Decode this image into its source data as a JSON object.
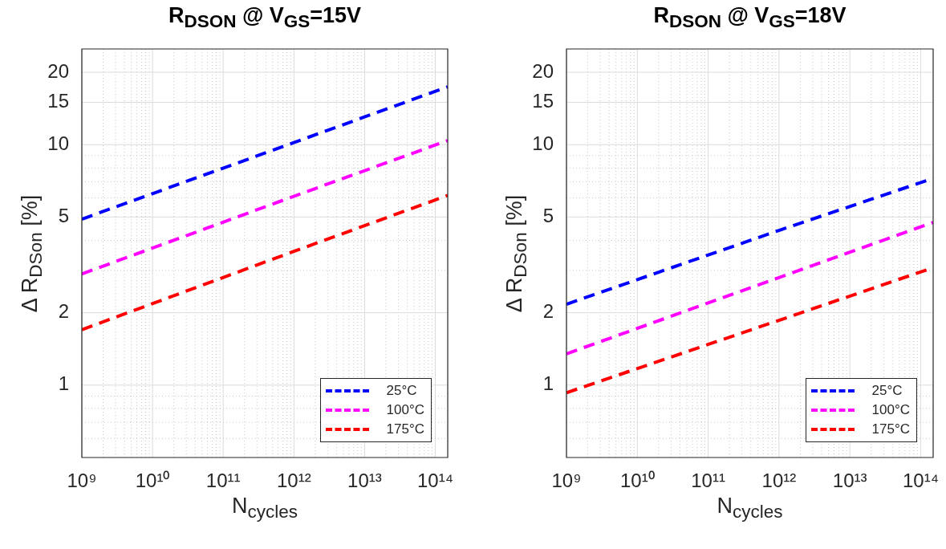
{
  "chart_data": [
    {
      "type": "line",
      "title": "R$_{DSON}$ @ V$_{GS}$=15V",
      "xlabel": "N$_{cycles}$",
      "ylabel": "Δ R$_{DSon}$ [%]",
      "x": [
        1000000000.0,
        1000000000000.0,
        150000000000000.0
      ],
      "series": [
        {
          "name": "25°C",
          "color": "#0000ff",
          "values": [
            4.9,
            10.2,
            17.4
          ]
        },
        {
          "name": "100°C",
          "color": "#ff00ff",
          "values": [
            2.9,
            6.1,
            10.4
          ]
        },
        {
          "name": "175°C",
          "color": "#ff0000",
          "values": [
            1.7,
            3.6,
            6.15
          ]
        }
      ],
      "log": "xy",
      "xlim": [
        1000000000.0,
        150000000000000.0
      ],
      "ylim": [
        0.5,
        25
      ],
      "xticks": [
        {
          "value": 1000000000.0,
          "label": "10⁹"
        },
        {
          "value": 2000000000.0,
          "label": null
        },
        {
          "value": 3000000000.0,
          "label": null
        },
        {
          "value": 4000000000.0,
          "label": null
        },
        {
          "value": 5000000000.0,
          "label": null
        },
        {
          "value": 6000000000.0,
          "label": null
        },
        {
          "value": 7000000000.0,
          "label": null
        },
        {
          "value": 8000000000.0,
          "label": null
        },
        {
          "value": 9000000000.0,
          "label": null
        },
        {
          "value": 10000000000.0,
          "label": "10¹⁰"
        },
        {
          "value": 20000000000.0,
          "label": null
        },
        {
          "value": 30000000000.0,
          "label": null
        },
        {
          "value": 40000000000.0,
          "label": null
        },
        {
          "value": 50000000000.0,
          "label": null
        },
        {
          "value": 60000000000.0,
          "label": null
        },
        {
          "value": 70000000000.0,
          "label": null
        },
        {
          "value": 80000000000.0,
          "label": null
        },
        {
          "value": 90000000000.0,
          "label": null
        },
        {
          "value": 100000000000.0,
          "label": "10¹¹"
        },
        {
          "value": 200000000000.0,
          "label": null
        },
        {
          "value": 300000000000.0,
          "label": null
        },
        {
          "value": 400000000000.0,
          "label": null
        },
        {
          "value": 500000000000.0,
          "label": null
        },
        {
          "value": 600000000000.0,
          "label": null
        },
        {
          "value": 700000000000.0,
          "label": null
        },
        {
          "value": 800000000000.0,
          "label": null
        },
        {
          "value": 900000000000.0,
          "label": null
        },
        {
          "value": 1000000000000.0,
          "label": "10¹²"
        },
        {
          "value": 2000000000000.0,
          "label": null
        },
        {
          "value": 3000000000000.0,
          "label": null
        },
        {
          "value": 4000000000000.0,
          "label": null
        },
        {
          "value": 5000000000000.0,
          "label": null
        },
        {
          "value": 6000000000000.0,
          "label": null
        },
        {
          "value": 7000000000000.0,
          "label": null
        },
        {
          "value": 8000000000000.0,
          "label": null
        },
        {
          "value": 9000000000000.0,
          "label": null
        },
        {
          "value": 10000000000000.0,
          "label": "10¹³"
        },
        {
          "value": 20000000000000.0,
          "label": null
        },
        {
          "value": 30000000000000.0,
          "label": null
        },
        {
          "value": 40000000000000.0,
          "label": null
        },
        {
          "value": 50000000000000.0,
          "label": null
        },
        {
          "value": 60000000000000.0,
          "label": null
        },
        {
          "value": 70000000000000.0,
          "label": null
        },
        {
          "value": 80000000000000.0,
          "label": null
        },
        {
          "value": 90000000000000.0,
          "label": null
        },
        {
          "value": 100000000000000.0,
          "label": "10¹⁴"
        }
      ],
      "yticks": [
        {
          "value": 0.6,
          "label": null
        },
        {
          "value": 0.7,
          "label": null
        },
        {
          "value": 0.8,
          "label": null
        },
        {
          "value": 0.9,
          "label": null
        },
        1,
        2,
        {
          "value": 3,
          "label": null
        },
        {
          "value": 4,
          "label": null
        },
        5,
        {
          "value": 6,
          "label": null
        },
        {
          "value": 7,
          "label": null
        },
        {
          "value": 8,
          "label": null
        },
        {
          "value": 9,
          "label": null
        },
        10,
        15,
        20
      ],
      "grid": true,
      "legend": "bottom right",
      "marker": "none",
      "line_style": "dashed"
    },
    {
      "type": "line",
      "title": "R$_{DSON}$ @ V$_{GS}$=18V",
      "xlabel": "N$_{cycles}$",
      "ylabel": "Δ R$_{DSon}$ [%]",
      "x": [
        1000000000.0,
        1000000000000.0,
        150000000000000.0
      ],
      "series": [
        {
          "name": "25°C",
          "color": "#0000ff",
          "values": [
            2.17,
            4.4,
            7.24
          ]
        },
        {
          "name": "100°C",
          "color": "#ff00ff",
          "values": [
            1.35,
            2.8,
            4.75
          ]
        },
        {
          "name": "175°C",
          "color": "#ff0000",
          "values": [
            0.93,
            1.86,
            3.08
          ]
        }
      ],
      "log": "xy",
      "xlim": [
        1000000000.0,
        150000000000000.0
      ],
      "ylim": [
        0.5,
        25
      ],
      "xticks": [
        {
          "value": 1000000000.0,
          "label": "10⁹"
        },
        {
          "value": 2000000000.0,
          "label": null
        },
        {
          "value": 3000000000.0,
          "label": null
        },
        {
          "value": 4000000000.0,
          "label": null
        },
        {
          "value": 5000000000.0,
          "label": null
        },
        {
          "value": 6000000000.0,
          "label": null
        },
        {
          "value": 7000000000.0,
          "label": null
        },
        {
          "value": 8000000000.0,
          "label": null
        },
        {
          "value": 9000000000.0,
          "label": null
        },
        {
          "value": 10000000000.0,
          "label": "10¹⁰"
        },
        {
          "value": 20000000000.0,
          "label": null
        },
        {
          "value": 30000000000.0,
          "label": null
        },
        {
          "value": 40000000000.0,
          "label": null
        },
        {
          "value": 50000000000.0,
          "label": null
        },
        {
          "value": 60000000000.0,
          "label": null
        },
        {
          "value": 70000000000.0,
          "label": null
        },
        {
          "value": 80000000000.0,
          "label": null
        },
        {
          "value": 90000000000.0,
          "label": null
        },
        {
          "value": 100000000000.0,
          "label": "10¹¹"
        },
        {
          "value": 200000000000.0,
          "label": null
        },
        {
          "value": 300000000000.0,
          "label": null
        },
        {
          "value": 400000000000.0,
          "label": null
        },
        {
          "value": 500000000000.0,
          "label": null
        },
        {
          "value": 600000000000.0,
          "label": null
        },
        {
          "value": 700000000000.0,
          "label": null
        },
        {
          "value": 800000000000.0,
          "label": null
        },
        {
          "value": 900000000000.0,
          "label": null
        },
        {
          "value": 1000000000000.0,
          "label": "10¹²"
        },
        {
          "value": 2000000000000.0,
          "label": null
        },
        {
          "value": 3000000000000.0,
          "label": null
        },
        {
          "value": 4000000000000.0,
          "label": null
        },
        {
          "value": 5000000000000.0,
          "label": null
        },
        {
          "value": 6000000000000.0,
          "label": null
        },
        {
          "value": 7000000000000.0,
          "label": null
        },
        {
          "value": 8000000000000.0,
          "label": null
        },
        {
          "value": 9000000000000.0,
          "label": null
        },
        {
          "value": 10000000000000.0,
          "label": "10¹³"
        },
        {
          "value": 20000000000000.0,
          "label": null
        },
        {
          "value": 30000000000000.0,
          "label": null
        },
        {
          "value": 40000000000000.0,
          "label": null
        },
        {
          "value": 50000000000000.0,
          "label": null
        },
        {
          "value": 60000000000000.0,
          "label": null
        },
        {
          "value": 70000000000000.0,
          "label": null
        },
        {
          "value": 80000000000000.0,
          "label": null
        },
        {
          "value": 90000000000000.0,
          "label": null
        },
        {
          "value": 100000000000000.0,
          "label": "10¹⁴"
        }
      ],
      "yticks": [
        {
          "value": 0.6,
          "label": null
        },
        {
          "value": 0.7,
          "label": null
        },
        {
          "value": 0.8,
          "label": null
        },
        {
          "value": 0.9,
          "label": null
        },
        1,
        2,
        {
          "value": 3,
          "label": null
        },
        {
          "value": 4,
          "label": null
        },
        5,
        {
          "value": 6,
          "label": null
        },
        {
          "value": 7,
          "label": null
        },
        {
          "value": 8,
          "label": null
        },
        {
          "value": 9,
          "label": null
        },
        10,
        15,
        20
      ],
      "grid": true,
      "legend": "bottom right",
      "marker": "none",
      "line_style": "dashed"
    }
  ]
}
